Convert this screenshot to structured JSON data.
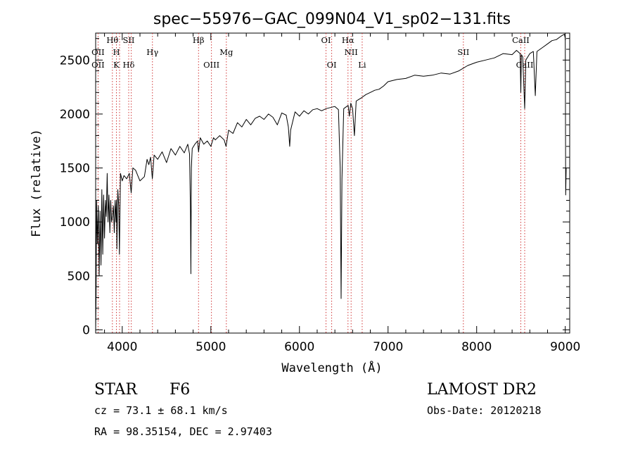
{
  "chart_data": {
    "type": "line",
    "title": "spec−55976−GAC_099N04_V1_sp02−131.fits",
    "xlabel": "Wavelength (Å)",
    "ylabel": "Flux (relative)",
    "xlim": [
      3700,
      9050
    ],
    "ylim": [
      -30,
      2750
    ],
    "x_ticks": [
      4000,
      5000,
      6000,
      7000,
      8000,
      9000
    ],
    "y_ticks": [
      0,
      500,
      1000,
      1500,
      2000,
      2500
    ],
    "line_color": "#000000",
    "marker_color": "#cc2222",
    "series": [
      {
        "values": [
          [
            3700,
            0
          ],
          [
            3705,
            300
          ],
          [
            3710,
            1200
          ],
          [
            3720,
            800
          ],
          [
            3730,
            1150
          ],
          [
            3740,
            500
          ],
          [
            3750,
            1100
          ],
          [
            3760,
            600
          ],
          [
            3770,
            1300
          ],
          [
            3780,
            700
          ],
          [
            3790,
            1250
          ],
          [
            3800,
            850
          ],
          [
            3810,
            1200
          ],
          [
            3820,
            1050
          ],
          [
            3830,
            1450
          ],
          [
            3840,
            1000
          ],
          [
            3850,
            1250
          ],
          [
            3860,
            900
          ],
          [
            3870,
            1200
          ],
          [
            3880,
            1000
          ],
          [
            3890,
            1050
          ],
          [
            3900,
            1150
          ],
          [
            3910,
            900
          ],
          [
            3920,
            1200
          ],
          [
            3930,
            1000
          ],
          [
            3935,
            1200
          ],
          [
            3940,
            750
          ],
          [
            3950,
            1300
          ],
          [
            3960,
            1150
          ],
          [
            3968,
            700
          ],
          [
            3980,
            1450
          ],
          [
            4000,
            1380
          ],
          [
            4020,
            1430
          ],
          [
            4050,
            1400
          ],
          [
            4080,
            1450
          ],
          [
            4101,
            1270
          ],
          [
            4120,
            1500
          ],
          [
            4150,
            1480
          ],
          [
            4200,
            1380
          ],
          [
            4250,
            1420
          ],
          [
            4280,
            1580
          ],
          [
            4300,
            1530
          ],
          [
            4320,
            1600
          ],
          [
            4340,
            1400
          ],
          [
            4360,
            1620
          ],
          [
            4400,
            1580
          ],
          [
            4450,
            1650
          ],
          [
            4500,
            1550
          ],
          [
            4550,
            1680
          ],
          [
            4600,
            1620
          ],
          [
            4650,
            1700
          ],
          [
            4700,
            1640
          ],
          [
            4740,
            1720
          ],
          [
            4760,
            1630
          ],
          [
            4770,
            1100
          ],
          [
            4775,
            520
          ],
          [
            4780,
            1500
          ],
          [
            4790,
            1680
          ],
          [
            4820,
            1720
          ],
          [
            4850,
            1750
          ],
          [
            4861,
            1650
          ],
          [
            4880,
            1780
          ],
          [
            4920,
            1720
          ],
          [
            4960,
            1750
          ],
          [
            5000,
            1700
          ],
          [
            5030,
            1780
          ],
          [
            5050,
            1760
          ],
          [
            5100,
            1800
          ],
          [
            5150,
            1760
          ],
          [
            5172,
            1700
          ],
          [
            5200,
            1850
          ],
          [
            5250,
            1820
          ],
          [
            5300,
            1920
          ],
          [
            5350,
            1880
          ],
          [
            5400,
            1950
          ],
          [
            5450,
            1900
          ],
          [
            5500,
            1960
          ],
          [
            5550,
            1980
          ],
          [
            5600,
            1950
          ],
          [
            5650,
            2000
          ],
          [
            5700,
            1970
          ],
          [
            5750,
            1900
          ],
          [
            5800,
            2010
          ],
          [
            5850,
            1990
          ],
          [
            5875,
            1880
          ],
          [
            5890,
            1700
          ],
          [
            5900,
            1850
          ],
          [
            5950,
            2020
          ],
          [
            6000,
            1980
          ],
          [
            6050,
            2030
          ],
          [
            6100,
            2000
          ],
          [
            6150,
            2040
          ],
          [
            6200,
            2050
          ],
          [
            6250,
            2030
          ],
          [
            6300,
            2050
          ],
          [
            6350,
            2060
          ],
          [
            6400,
            2070
          ],
          [
            6440,
            2040
          ],
          [
            6460,
            1500
          ],
          [
            6470,
            290
          ],
          [
            6480,
            1400
          ],
          [
            6500,
            2050
          ],
          [
            6550,
            2080
          ],
          [
            6563,
            1980
          ],
          [
            6580,
            2100
          ],
          [
            6600,
            2050
          ],
          [
            6620,
            1800
          ],
          [
            6640,
            2120
          ],
          [
            6700,
            2150
          ],
          [
            6750,
            2180
          ],
          [
            6800,
            2200
          ],
          [
            6850,
            2220
          ],
          [
            6900,
            2230
          ],
          [
            6950,
            2260
          ],
          [
            7000,
            2300
          ],
          [
            7100,
            2320
          ],
          [
            7200,
            2330
          ],
          [
            7300,
            2360
          ],
          [
            7400,
            2350
          ],
          [
            7500,
            2360
          ],
          [
            7600,
            2380
          ],
          [
            7700,
            2370
          ],
          [
            7800,
            2400
          ],
          [
            7900,
            2450
          ],
          [
            8000,
            2480
          ],
          [
            8100,
            2500
          ],
          [
            8200,
            2520
          ],
          [
            8300,
            2560
          ],
          [
            8400,
            2550
          ],
          [
            8450,
            2590
          ],
          [
            8490,
            2560
          ],
          [
            8498,
            2200
          ],
          [
            8505,
            2550
          ],
          [
            8520,
            2530
          ],
          [
            8542,
            2050
          ],
          [
            8555,
            2500
          ],
          [
            8600,
            2560
          ],
          [
            8640,
            2580
          ],
          [
            8662,
            2170
          ],
          [
            8680,
            2580
          ],
          [
            8750,
            2620
          ],
          [
            8800,
            2650
          ],
          [
            8850,
            2680
          ],
          [
            8900,
            2690
          ],
          [
            8950,
            2720
          ],
          [
            8990,
            2740
          ],
          [
            9000,
            2700
          ],
          [
            9005,
            1250
          ],
          [
            9010,
            1500
          ]
        ]
      }
    ],
    "line_markers": [
      {
        "x": 3727,
        "label_top": "OII",
        "label_bottom": "OII",
        "top_row": 2
      },
      {
        "x": 3889,
        "label_top": "Hθ",
        "label_bottom": "",
        "top_row": 1
      },
      {
        "x": 3934,
        "label_top": "H",
        "label_bottom": "K",
        "top_row": 2
      },
      {
        "x": 3970,
        "label_top": "",
        "label_bottom": "",
        "top_row": 0
      },
      {
        "x": 4073,
        "label_top": "SII",
        "label_bottom": "Hδ",
        "top_row": 1
      },
      {
        "x": 4102,
        "label_top": "",
        "label_bottom": "",
        "top_row": 0
      },
      {
        "x": 4341,
        "label_top": "Hγ",
        "label_bottom": "",
        "top_row": 2
      },
      {
        "x": 4861,
        "label_top": "Hβ",
        "label_bottom": "",
        "top_row": 1
      },
      {
        "x": 5007,
        "label_top": "",
        "label_bottom": "OIII",
        "top_row": 0
      },
      {
        "x": 5175,
        "label_top": "Mg",
        "label_bottom": "",
        "top_row": 2
      },
      {
        "x": 6300,
        "label_top": "OI",
        "label_bottom": "",
        "top_row": 1
      },
      {
        "x": 6364,
        "label_top": "",
        "label_bottom": "OI",
        "top_row": 0
      },
      {
        "x": 6548,
        "label_top": "Hα",
        "label_bottom": "",
        "top_row": 1
      },
      {
        "x": 6583,
        "label_top": "NII",
        "label_bottom": "",
        "top_row": 2
      },
      {
        "x": 6708,
        "label_top": "",
        "label_bottom": "Li",
        "top_row": 0
      },
      {
        "x": 7850,
        "label_top": "SII",
        "label_bottom": "",
        "top_row": 2
      },
      {
        "x": 8498,
        "label_top": "CaII",
        "label_bottom": "",
        "top_row": 1
      },
      {
        "x": 8542,
        "label_top": "",
        "label_bottom": "CaII",
        "top_row": 0
      }
    ]
  },
  "info": {
    "class": "STAR",
    "subclass": "F6",
    "survey": "LAMOST DR2",
    "cz": "cz = 73.1 ± 68.1 km/s",
    "obs_date": "Obs-Date: 20120218",
    "radec": "RA =  98.35154, DEC =   2.97403"
  }
}
